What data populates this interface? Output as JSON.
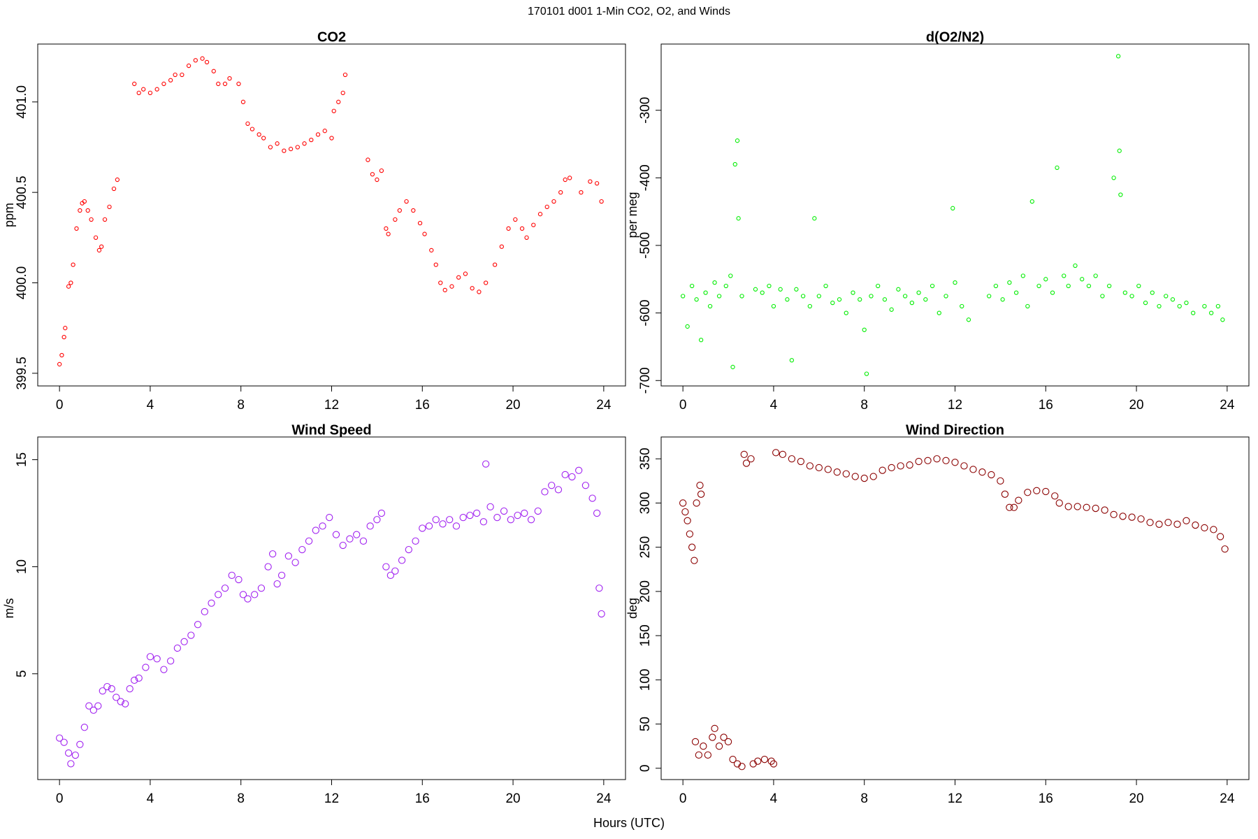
{
  "title": "170101   d001   1-Min CO2, O2, and Winds",
  "xlabel": "Hours (UTC)",
  "chart_data": [
    {
      "type": "scatter",
      "title": "CO2",
      "ylabel": "ppm",
      "color": "#ff0000",
      "xlim": [
        -0.96,
        24.96
      ],
      "xticks": [
        0,
        4,
        8,
        12,
        16,
        20,
        24
      ],
      "ylim": [
        399.43,
        401.32
      ],
      "yticks": [
        399.5,
        {
          "value": 400,
          "label": "400.0"
        },
        400.5,
        {
          "value": 401,
          "label": "401.0"
        }
      ],
      "x": [
        0,
        0.1,
        0.2,
        0.25,
        0.4,
        0.5,
        0.6,
        0.75,
        0.9,
        1.0,
        1.1,
        1.25,
        1.4,
        1.6,
        1.75,
        1.85,
        2.0,
        2.2,
        2.4,
        2.55,
        3.3,
        3.5,
        3.7,
        4.0,
        4.3,
        4.6,
        4.9,
        5.1,
        5.4,
        5.7,
        6.0,
        6.3,
        6.5,
        6.8,
        7.0,
        7.3,
        7.5,
        7.9,
        8.1,
        8.3,
        8.5,
        8.8,
        9.0,
        9.3,
        9.6,
        9.9,
        10.2,
        10.5,
        10.8,
        11.1,
        11.4,
        11.7,
        12.0,
        12.1,
        12.3,
        12.5,
        12.6,
        13.6,
        13.8,
        14.0,
        14.2,
        14.4,
        14.5,
        14.8,
        15.0,
        15.3,
        15.6,
        15.9,
        16.1,
        16.4,
        16.6,
        16.8,
        17.0,
        17.3,
        17.6,
        17.9,
        18.2,
        18.5,
        18.8,
        19.2,
        19.5,
        19.8,
        20.1,
        20.4,
        20.6,
        20.9,
        21.2,
        21.5,
        21.8,
        22.1,
        22.3,
        22.5,
        23.0,
        23.4,
        23.7,
        23.9
      ],
      "values": [
        399.55,
        399.6,
        399.7,
        399.75,
        399.98,
        400.0,
        400.1,
        400.3,
        400.4,
        400.44,
        400.45,
        400.4,
        400.35,
        400.25,
        400.18,
        400.2,
        400.35,
        400.42,
        400.52,
        400.57,
        401.1,
        401.05,
        401.07,
        401.05,
        401.07,
        401.1,
        401.12,
        401.15,
        401.15,
        401.2,
        401.23,
        401.24,
        401.22,
        401.17,
        401.1,
        401.1,
        401.13,
        401.1,
        401.0,
        400.88,
        400.85,
        400.82,
        400.8,
        400.75,
        400.77,
        400.73,
        400.74,
        400.75,
        400.77,
        400.79,
        400.82,
        400.84,
        400.8,
        400.95,
        401.0,
        401.05,
        401.15,
        400.68,
        400.6,
        400.57,
        400.62,
        400.3,
        400.27,
        400.35,
        400.4,
        400.45,
        400.4,
        400.33,
        400.27,
        400.18,
        400.1,
        400.0,
        399.96,
        399.98,
        400.03,
        400.05,
        399.97,
        399.95,
        400.0,
        400.1,
        400.2,
        400.3,
        400.35,
        400.3,
        400.25,
        400.32,
        400.38,
        400.42,
        400.45,
        400.5,
        400.57,
        400.58,
        400.5,
        400.56,
        400.55,
        400.45
      ]
    },
    {
      "type": "scatter",
      "title": "d(O2/N2)",
      "ylabel": "per meg",
      "color": "#00ee00",
      "xlim": [
        -0.96,
        24.96
      ],
      "xticks": [
        0,
        4,
        8,
        12,
        16,
        20,
        24
      ],
      "ylim": [
        -708,
        -202
      ],
      "yticks": [
        -700,
        -600,
        -500,
        -400,
        -300
      ],
      "x": [
        0,
        0.2,
        0.4,
        0.6,
        0.8,
        1.0,
        1.2,
        1.4,
        1.6,
        1.9,
        2.1,
        2.2,
        2.3,
        2.4,
        2.45,
        2.6,
        3.2,
        3.5,
        3.8,
        4.0,
        4.3,
        4.6,
        4.8,
        5.0,
        5.3,
        5.6,
        5.8,
        6.0,
        6.3,
        6.6,
        6.9,
        7.2,
        7.5,
        7.8,
        8.0,
        8.1,
        8.3,
        8.6,
        8.9,
        9.2,
        9.5,
        9.8,
        10.1,
        10.4,
        10.7,
        11.0,
        11.3,
        11.6,
        11.9,
        12.0,
        12.3,
        12.6,
        13.5,
        13.8,
        14.1,
        14.4,
        14.7,
        15.0,
        15.2,
        15.4,
        15.7,
        16.0,
        16.3,
        16.5,
        16.8,
        17.0,
        17.3,
        17.6,
        17.9,
        18.2,
        18.5,
        18.8,
        19.0,
        19.2,
        19.25,
        19.3,
        19.5,
        19.8,
        20.1,
        20.4,
        20.7,
        21.0,
        21.3,
        21.6,
        21.9,
        22.2,
        22.5,
        23.0,
        23.3,
        23.6,
        23.8
      ],
      "values": [
        -575,
        -620,
        -560,
        -580,
        -640,
        -570,
        -590,
        -555,
        -575,
        -560,
        -545,
        -680,
        -380,
        -345,
        -460,
        -575,
        -565,
        -570,
        -560,
        -590,
        -565,
        -580,
        -670,
        -565,
        -575,
        -590,
        -460,
        -575,
        -560,
        -585,
        -580,
        -600,
        -570,
        -580,
        -625,
        -690,
        -575,
        -560,
        -580,
        -595,
        -565,
        -575,
        -585,
        -570,
        -580,
        -560,
        -600,
        -575,
        -445,
        -555,
        -590,
        -610,
        -575,
        -560,
        -580,
        -555,
        -570,
        -545,
        -590,
        -435,
        -560,
        -550,
        -570,
        -385,
        -545,
        -560,
        -530,
        -550,
        -560,
        -545,
        -575,
        -560,
        -400,
        -220,
        -360,
        -425,
        -570,
        -575,
        -560,
        -585,
        -570,
        -590,
        -575,
        -580,
        -590,
        -585,
        -600,
        -590,
        -600,
        -590,
        -610
      ]
    },
    {
      "type": "scatter",
      "title": "Wind Speed",
      "ylabel": "m/s",
      "color": "#a020f0",
      "xlim": [
        -0.96,
        24.96
      ],
      "xticks": [
        0,
        4,
        8,
        12,
        16,
        20,
        24
      ],
      "ylim": [
        0.06,
        16.06
      ],
      "yticks": [
        5,
        10,
        15
      ],
      "x": [
        0,
        0.2,
        0.4,
        0.5,
        0.7,
        0.9,
        1.1,
        1.3,
        1.5,
        1.7,
        1.9,
        2.1,
        2.3,
        2.5,
        2.7,
        2.9,
        3.1,
        3.3,
        3.5,
        3.8,
        4.0,
        4.3,
        4.6,
        4.9,
        5.2,
        5.5,
        5.8,
        6.1,
        6.4,
        6.7,
        7.0,
        7.3,
        7.6,
        7.9,
        8.1,
        8.3,
        8.6,
        8.9,
        9.2,
        9.4,
        9.6,
        9.8,
        10.1,
        10.4,
        10.7,
        11.0,
        11.3,
        11.6,
        11.9,
        12.2,
        12.5,
        12.8,
        13.1,
        13.4,
        13.7,
        14.0,
        14.2,
        14.4,
        14.6,
        14.8,
        15.1,
        15.4,
        15.7,
        16.0,
        16.3,
        16.6,
        16.9,
        17.2,
        17.5,
        17.8,
        18.1,
        18.4,
        18.7,
        18.8,
        19.0,
        19.3,
        19.6,
        19.9,
        20.2,
        20.5,
        20.8,
        21.1,
        21.4,
        21.7,
        22.0,
        22.3,
        22.6,
        22.9,
        23.2,
        23.5,
        23.7,
        23.8,
        23.9
      ],
      "values": [
        2.0,
        1.8,
        1.3,
        0.8,
        1.2,
        1.7,
        2.5,
        3.5,
        3.3,
        3.5,
        4.2,
        4.4,
        4.3,
        3.9,
        3.7,
        3.6,
        4.3,
        4.7,
        4.8,
        5.3,
        5.8,
        5.7,
        5.2,
        5.6,
        6.2,
        6.5,
        6.8,
        7.3,
        7.9,
        8.3,
        8.7,
        9.0,
        9.6,
        9.4,
        8.7,
        8.5,
        8.7,
        9.0,
        10.0,
        10.6,
        9.2,
        9.6,
        10.5,
        10.2,
        10.8,
        11.2,
        11.7,
        11.9,
        12.3,
        11.5,
        11.0,
        11.3,
        11.5,
        11.2,
        11.9,
        12.2,
        12.5,
        10.0,
        9.6,
        9.8,
        10.3,
        10.8,
        11.2,
        11.8,
        11.9,
        12.2,
        12.0,
        12.2,
        11.9,
        12.3,
        12.4,
        12.5,
        12.1,
        14.8,
        12.8,
        12.3,
        12.6,
        12.2,
        12.4,
        12.5,
        12.2,
        12.6,
        13.5,
        13.8,
        13.6,
        14.3,
        14.2,
        14.5,
        13.8,
        13.2,
        12.5,
        9.0,
        7.8
      ]
    },
    {
      "type": "scatter",
      "title": "Wind Direction",
      "ylabel": "deg",
      "color": "#8b0000",
      "xlim": [
        -0.96,
        24.96
      ],
      "xticks": [
        0,
        4,
        8,
        12,
        16,
        20,
        24
      ],
      "ylim": [
        -12.8,
        374.7
      ],
      "yticks": [
        0,
        50,
        100,
        150,
        200,
        250,
        300,
        350
      ],
      "x": [
        0,
        0.1,
        0.2,
        0.3,
        0.4,
        0.5,
        0.55,
        0.6,
        0.7,
        0.75,
        0.8,
        0.9,
        1.1,
        1.3,
        1.4,
        1.6,
        1.8,
        2.0,
        2.2,
        2.4,
        2.6,
        2.7,
        2.8,
        3.0,
        3.1,
        3.3,
        3.6,
        3.9,
        4.0,
        4.1,
        4.4,
        4.8,
        5.2,
        5.6,
        6.0,
        6.4,
        6.8,
        7.2,
        7.6,
        8.0,
        8.4,
        8.8,
        9.2,
        9.6,
        10.0,
        10.4,
        10.8,
        11.2,
        11.6,
        12.0,
        12.4,
        12.8,
        13.2,
        13.6,
        14.0,
        14.2,
        14.4,
        14.6,
        14.8,
        15.2,
        15.6,
        16.0,
        16.4,
        16.6,
        17.0,
        17.4,
        17.8,
        18.2,
        18.6,
        19.0,
        19.4,
        19.8,
        20.2,
        20.6,
        21.0,
        21.4,
        21.8,
        22.2,
        22.6,
        23.0,
        23.4,
        23.7,
        23.9
      ],
      "values": [
        300,
        290,
        280,
        265,
        250,
        235,
        30,
        300,
        15,
        320,
        310,
        25,
        15,
        35,
        45,
        25,
        35,
        30,
        10,
        5,
        2,
        355,
        345,
        350,
        5,
        8,
        10,
        8,
        5,
        357,
        355,
        350,
        347,
        342,
        340,
        338,
        335,
        333,
        330,
        328,
        330,
        337,
        340,
        342,
        343,
        347,
        348,
        350,
        348,
        346,
        342,
        338,
        335,
        332,
        325,
        310,
        295,
        295,
        303,
        312,
        314,
        313,
        308,
        300,
        296,
        296,
        295,
        294,
        292,
        287,
        285,
        284,
        282,
        278,
        276,
        278,
        276,
        280,
        275,
        272,
        270,
        262,
        248
      ]
    }
  ]
}
